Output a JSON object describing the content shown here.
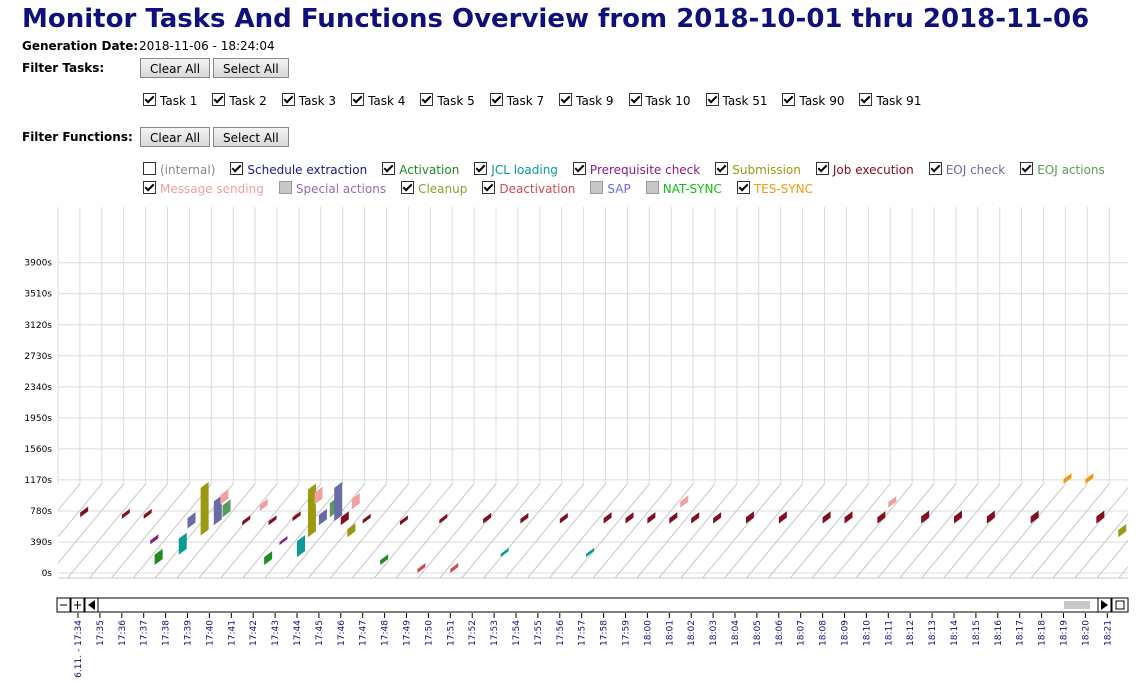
{
  "header": {
    "title": "Monitor Tasks And Functions Overview from 2018-10-01 thru 2018-11-06",
    "generation_label": "Generation Date:",
    "generation_date": "2018-11-06 - 18:24:04"
  },
  "filter_tasks": {
    "label": "Filter Tasks:",
    "buttons": [
      "Clear All",
      "Select All"
    ],
    "items": [
      {
        "name": "Task 1",
        "checked": true
      },
      {
        "name": "Task 2",
        "checked": true
      },
      {
        "name": "Task 3",
        "checked": true
      },
      {
        "name": "Task 4",
        "checked": true
      },
      {
        "name": "Task 5",
        "checked": true
      },
      {
        "name": "Task 7",
        "checked": true
      },
      {
        "name": "Task 9",
        "checked": true
      },
      {
        "name": "Task 10",
        "checked": true
      },
      {
        "name": "Task 51",
        "checked": true
      },
      {
        "name": "Task 90",
        "checked": true
      },
      {
        "name": "Task 91",
        "checked": true
      }
    ]
  },
  "filter_functions": {
    "label": "Filter Functions:",
    "buttons": [
      "Clear All",
      "Select All"
    ],
    "items": [
      {
        "name": "(internal)",
        "color": "#888888",
        "checked": false,
        "enabled": true
      },
      {
        "name": "Schedule extraction",
        "color": "#1a1a80",
        "checked": true,
        "enabled": true
      },
      {
        "name": "Activation",
        "color": "#1e8c1e",
        "checked": true,
        "enabled": true
      },
      {
        "name": "JCL loading",
        "color": "#0a9a9a",
        "checked": true,
        "enabled": true
      },
      {
        "name": "Prerequisite check",
        "color": "#8a1a8a",
        "checked": true,
        "enabled": true
      },
      {
        "name": "Submission",
        "color": "#9a9a10",
        "checked": true,
        "enabled": true
      },
      {
        "name": "Job execution",
        "color": "#801020",
        "checked": true,
        "enabled": true
      },
      {
        "name": "EOJ check",
        "color": "#6a6aa8",
        "checked": true,
        "enabled": true
      },
      {
        "name": "EOJ actions",
        "color": "#5a9a5a",
        "checked": true,
        "enabled": true
      },
      {
        "name": "Message sending",
        "color": "#f0a0a0",
        "checked": true,
        "enabled": true
      },
      {
        "name": "Special actions",
        "color": "#9a6ab0",
        "checked": false,
        "enabled": false
      },
      {
        "name": "Cleanup",
        "color": "#88a030",
        "checked": true,
        "enabled": true
      },
      {
        "name": "Deactivation",
        "color": "#d04a4a",
        "checked": true,
        "enabled": true
      },
      {
        "name": "SAP",
        "color": "#6a6af0",
        "checked": false,
        "enabled": false
      },
      {
        "name": "NAT-SYNC",
        "color": "#10c010",
        "checked": false,
        "enabled": false
      },
      {
        "name": "TES-SYNC",
        "color": "#f09a10",
        "checked": true,
        "enabled": true
      }
    ]
  },
  "chart": {
    "ylim": [
      0,
      4600
    ],
    "yticks": [
      {
        "value": 0,
        "label": "0s"
      },
      {
        "value": 390,
        "label": "390s"
      },
      {
        "value": 780,
        "label": "780s"
      },
      {
        "value": 1170,
        "label": "1170s"
      },
      {
        "value": 1560,
        "label": "1560s"
      },
      {
        "value": 1950,
        "label": "1950s"
      },
      {
        "value": 2340,
        "label": "2340s"
      },
      {
        "value": 2730,
        "label": "2730s"
      },
      {
        "value": 3120,
        "label": "3120s"
      },
      {
        "value": 3510,
        "label": "3510s"
      },
      {
        "value": 3900,
        "label": "3900s"
      }
    ],
    "time_labels": [
      "6.11. - 17:34",
      "17:35",
      "17:36",
      "17:37",
      "17:38",
      "17:39",
      "17:40",
      "17:41",
      "17:42",
      "17:43",
      "17:44",
      "17:45",
      "17:46",
      "17:47",
      "17:48",
      "17:49",
      "17:50",
      "17:51",
      "17:52",
      "17:53",
      "17:54",
      "17:55",
      "17:56",
      "17:57",
      "17:58",
      "17:59",
      "18:00",
      "18:01",
      "18:02",
      "18:03",
      "18:04",
      "18:05",
      "18:06",
      "18:07",
      "18:08",
      "18:09",
      "18:10",
      "18:11",
      "18:12",
      "18:13",
      "18:14",
      "18:15",
      "18:16",
      "18:17",
      "18:18",
      "18:19",
      "18:20",
      "18:21"
    ],
    "segments": [
      {
        "minute": 0.1,
        "function": 6,
        "start": 700,
        "duration": 60
      },
      {
        "minute": 2.0,
        "function": 6,
        "start": 680,
        "duration": 50
      },
      {
        "minute": 3.0,
        "function": 6,
        "start": 680,
        "duration": 50
      },
      {
        "minute": 3.3,
        "function": 4,
        "start": 360,
        "duration": 50
      },
      {
        "minute": 3.5,
        "function": 2,
        "start": 100,
        "duration": 130
      },
      {
        "minute": 4.6,
        "function": 3,
        "start": 230,
        "duration": 200
      },
      {
        "minute": 5.0,
        "function": 7,
        "start": 560,
        "duration": 130
      },
      {
        "minute": 5.6,
        "function": 5,
        "start": 470,
        "duration": 600
      },
      {
        "minute": 6.2,
        "function": 7,
        "start": 600,
        "duration": 300
      },
      {
        "minute": 6.5,
        "function": 9,
        "start": 860,
        "duration": 120
      },
      {
        "minute": 6.6,
        "function": 8,
        "start": 700,
        "duration": 150
      },
      {
        "minute": 7.5,
        "function": 6,
        "start": 600,
        "duration": 50
      },
      {
        "minute": 8.3,
        "function": 9,
        "start": 780,
        "duration": 80
      },
      {
        "minute": 8.5,
        "function": 2,
        "start": 100,
        "duration": 100
      },
      {
        "minute": 8.7,
        "function": 6,
        "start": 600,
        "duration": 50
      },
      {
        "minute": 9.2,
        "function": 4,
        "start": 350,
        "duration": 40
      },
      {
        "minute": 9.8,
        "function": 6,
        "start": 650,
        "duration": 50
      },
      {
        "minute": 10.0,
        "function": 3,
        "start": 200,
        "duration": 200
      },
      {
        "minute": 10.5,
        "function": 5,
        "start": 450,
        "duration": 600
      },
      {
        "minute": 10.8,
        "function": 9,
        "start": 860,
        "duration": 150
      },
      {
        "minute": 11.0,
        "function": 7,
        "start": 600,
        "duration": 130
      },
      {
        "minute": 11.5,
        "function": 8,
        "start": 700,
        "duration": 180
      },
      {
        "minute": 11.7,
        "function": 7,
        "start": 650,
        "duration": 420
      },
      {
        "minute": 12.0,
        "function": 6,
        "start": 600,
        "duration": 100
      },
      {
        "minute": 12.3,
        "function": 5,
        "start": 450,
        "duration": 100
      },
      {
        "minute": 12.5,
        "function": 9,
        "start": 800,
        "duration": 130
      },
      {
        "minute": 13.0,
        "function": 6,
        "start": 620,
        "duration": 50
      },
      {
        "minute": 13.8,
        "function": 2,
        "start": 100,
        "duration": 60
      },
      {
        "minute": 14.7,
        "function": 6,
        "start": 600,
        "duration": 50
      },
      {
        "minute": 15.5,
        "function": 12,
        "start": 0,
        "duration": 50
      },
      {
        "minute": 16.5,
        "function": 6,
        "start": 620,
        "duration": 50
      },
      {
        "minute": 17.0,
        "function": 12,
        "start": 0,
        "duration": 50
      },
      {
        "minute": 18.5,
        "function": 6,
        "start": 620,
        "duration": 60
      },
      {
        "minute": 19.3,
        "function": 3,
        "start": 200,
        "duration": 40
      },
      {
        "minute": 20.2,
        "function": 6,
        "start": 620,
        "duration": 60
      },
      {
        "minute": 22.0,
        "function": 6,
        "start": 620,
        "duration": 60
      },
      {
        "minute": 23.2,
        "function": 3,
        "start": 200,
        "duration": 40
      },
      {
        "minute": 24.0,
        "function": 6,
        "start": 620,
        "duration": 70
      },
      {
        "minute": 25.0,
        "function": 6,
        "start": 620,
        "duration": 70
      },
      {
        "minute": 26.0,
        "function": 6,
        "start": 620,
        "duration": 70
      },
      {
        "minute": 27.0,
        "function": 6,
        "start": 620,
        "duration": 70
      },
      {
        "minute": 27.5,
        "function": 9,
        "start": 820,
        "duration": 80
      },
      {
        "minute": 28.0,
        "function": 6,
        "start": 620,
        "duration": 70
      },
      {
        "minute": 29.0,
        "function": 6,
        "start": 620,
        "duration": 70
      },
      {
        "minute": 30.5,
        "function": 6,
        "start": 620,
        "duration": 80
      },
      {
        "minute": 32.0,
        "function": 6,
        "start": 620,
        "duration": 80
      },
      {
        "minute": 34.0,
        "function": 6,
        "start": 620,
        "duration": 80
      },
      {
        "minute": 35.0,
        "function": 6,
        "start": 620,
        "duration": 80
      },
      {
        "minute": 36.5,
        "function": 6,
        "start": 620,
        "duration": 80
      },
      {
        "minute": 37.0,
        "function": 9,
        "start": 820,
        "duration": 70
      },
      {
        "minute": 38.5,
        "function": 6,
        "start": 620,
        "duration": 90
      },
      {
        "minute": 40.0,
        "function": 6,
        "start": 620,
        "duration": 90
      },
      {
        "minute": 41.5,
        "function": 6,
        "start": 620,
        "duration": 90
      },
      {
        "minute": 43.5,
        "function": 6,
        "start": 620,
        "duration": 90
      },
      {
        "minute": 45.0,
        "function": 15,
        "start": 1120,
        "duration": 60
      },
      {
        "minute": 46.0,
        "function": 15,
        "start": 1120,
        "duration": 60
      },
      {
        "minute": 46.5,
        "function": 6,
        "start": 620,
        "duration": 90
      },
      {
        "minute": 47.5,
        "function": 5,
        "start": 450,
        "duration": 90
      }
    ]
  }
}
